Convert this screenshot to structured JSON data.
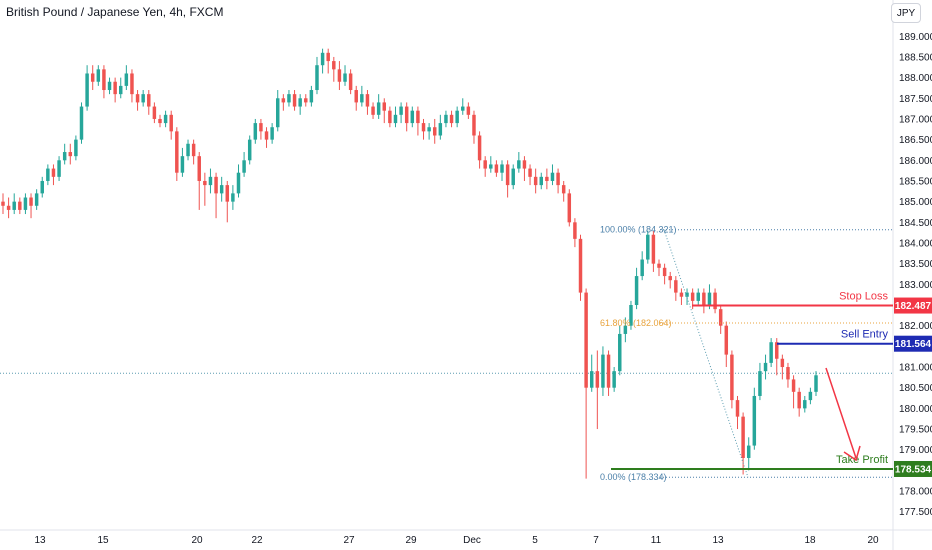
{
  "header": {
    "title": "British Pound / Japanese Yen, 4h, FXCM",
    "currency": "JPY"
  },
  "chart_data": {
    "type": "candlestick",
    "title": "British Pound / Japanese Yen, 4h, FXCM",
    "ylim": [
      177.3,
      189.2
    ],
    "y_ticks": [
      "189.000",
      "188.500",
      "188.000",
      "187.500",
      "187.000",
      "186.500",
      "186.000",
      "185.500",
      "185.000",
      "184.500",
      "184.000",
      "183.500",
      "183.000",
      "182.500",
      "182.000",
      "181.500",
      "181.000",
      "180.500",
      "180.000",
      "179.500",
      "179.000",
      "178.500",
      "178.000",
      "177.500"
    ],
    "x_ticks": [
      "13",
      "15",
      "20",
      "22",
      "27",
      "29",
      "Dec",
      "5",
      "7",
      "11",
      "13",
      "18",
      "20"
    ],
    "levels": {
      "stop_loss": {
        "label": "Stop Loss",
        "value": "182.487",
        "color": "#f23645"
      },
      "sell_entry": {
        "label": "Sell Entry",
        "value": "181.564",
        "color": "#1e2bb3"
      },
      "take_profit": {
        "label": "Take Profit",
        "value": "178.534",
        "color": "#2e7d1e"
      }
    },
    "fibonacci": [
      {
        "label": "100.00% (184.321)",
        "value": 184.321,
        "color": "#4a7fa8"
      },
      {
        "label": "61.80% (182.064)",
        "value": 182.064,
        "color": "#e8a33d"
      },
      {
        "label": "0.00% (178.334)",
        "value": 178.334,
        "color": "#4a7fa8"
      }
    ],
    "current_price_line": 180.85,
    "colors": {
      "up": "#26a69a",
      "down": "#ef5350"
    },
    "candles": [
      [
        185.0,
        184.9,
        185.2,
        184.7
      ],
      [
        184.9,
        184.8,
        185.1,
        184.6
      ],
      [
        184.8,
        185.0,
        185.2,
        184.7
      ],
      [
        185.0,
        184.8,
        185.1,
        184.7
      ],
      [
        184.8,
        185.1,
        185.2,
        184.7
      ],
      [
        185.1,
        184.9,
        185.2,
        184.6
      ],
      [
        184.9,
        185.2,
        185.3,
        184.8
      ],
      [
        185.2,
        185.5,
        185.6,
        185.1
      ],
      [
        185.5,
        185.8,
        185.9,
        185.4
      ],
      [
        185.8,
        185.6,
        185.9,
        185.4
      ],
      [
        185.6,
        186.0,
        186.1,
        185.5
      ],
      [
        186.0,
        186.2,
        186.4,
        185.9
      ],
      [
        186.2,
        186.1,
        186.4,
        185.9
      ],
      [
        186.1,
        186.5,
        186.6,
        186.0
      ],
      [
        186.5,
        187.3,
        187.4,
        186.4
      ],
      [
        187.3,
        188.1,
        188.3,
        187.2
      ],
      [
        188.1,
        187.9,
        188.3,
        187.7
      ],
      [
        187.9,
        188.2,
        188.3,
        187.8
      ],
      [
        188.2,
        187.7,
        188.3,
        187.5
      ],
      [
        187.7,
        187.9,
        188.0,
        187.6
      ],
      [
        187.9,
        187.6,
        188.0,
        187.4
      ],
      [
        187.6,
        187.8,
        188.0,
        187.5
      ],
      [
        187.8,
        188.1,
        188.3,
        187.7
      ],
      [
        188.1,
        187.6,
        188.2,
        187.4
      ],
      [
        187.6,
        187.4,
        187.7,
        187.2
      ],
      [
        187.4,
        187.6,
        187.7,
        187.3
      ],
      [
        187.6,
        187.3,
        187.7,
        187.1
      ],
      [
        187.3,
        187.0,
        187.4,
        186.9
      ],
      [
        187.0,
        186.9,
        187.1,
        186.8
      ],
      [
        186.9,
        187.1,
        187.2,
        186.8
      ],
      [
        187.1,
        186.7,
        187.2,
        186.5
      ],
      [
        186.7,
        185.7,
        186.8,
        185.5
      ],
      [
        185.7,
        186.1,
        186.3,
        185.6
      ],
      [
        186.1,
        186.4,
        186.5,
        186.0
      ],
      [
        186.4,
        186.1,
        186.5,
        185.9
      ],
      [
        186.1,
        185.5,
        186.2,
        184.8
      ],
      [
        185.5,
        185.4,
        185.7,
        184.9
      ],
      [
        185.4,
        185.6,
        185.8,
        185.2
      ],
      [
        185.6,
        185.2,
        185.7,
        184.6
      ],
      [
        185.2,
        185.4,
        185.6,
        185.0
      ],
      [
        185.4,
        185.0,
        185.5,
        184.5
      ],
      [
        185.0,
        185.2,
        185.4,
        184.8
      ],
      [
        185.2,
        185.7,
        185.9,
        185.1
      ],
      [
        185.7,
        186.0,
        186.2,
        185.6
      ],
      [
        186.0,
        186.5,
        186.6,
        185.9
      ],
      [
        186.5,
        186.9,
        187.0,
        186.4
      ],
      [
        186.9,
        186.7,
        187.0,
        186.5
      ],
      [
        186.7,
        186.5,
        186.8,
        186.3
      ],
      [
        186.5,
        186.8,
        186.9,
        186.4
      ],
      [
        186.8,
        187.5,
        187.7,
        186.7
      ],
      [
        187.5,
        187.4,
        187.6,
        187.2
      ],
      [
        187.4,
        187.6,
        187.7,
        187.3
      ],
      [
        187.6,
        187.3,
        187.7,
        187.2
      ],
      [
        187.3,
        187.5,
        187.6,
        187.1
      ],
      [
        187.5,
        187.4,
        187.6,
        187.3
      ],
      [
        187.4,
        187.7,
        187.8,
        187.3
      ],
      [
        187.7,
        188.3,
        188.5,
        187.6
      ],
      [
        188.3,
        188.6,
        188.7,
        188.1
      ],
      [
        188.6,
        188.4,
        188.7,
        188.1
      ],
      [
        188.4,
        188.2,
        188.5,
        187.9
      ],
      [
        188.2,
        187.9,
        188.4,
        187.7
      ],
      [
        187.9,
        188.1,
        188.3,
        187.8
      ],
      [
        188.1,
        187.7,
        188.2,
        187.6
      ],
      [
        187.7,
        187.4,
        187.8,
        187.2
      ],
      [
        187.4,
        187.6,
        187.8,
        187.3
      ],
      [
        187.6,
        187.3,
        187.7,
        187.1
      ],
      [
        187.3,
        187.1,
        187.4,
        187.0
      ],
      [
        187.1,
        187.4,
        187.6,
        187.0
      ],
      [
        187.4,
        187.2,
        187.5,
        186.9
      ],
      [
        187.2,
        186.9,
        187.3,
        186.8
      ],
      [
        186.9,
        187.1,
        187.3,
        186.8
      ],
      [
        187.1,
        187.3,
        187.4,
        186.9
      ],
      [
        187.3,
        186.9,
        187.4,
        186.7
      ],
      [
        186.9,
        187.2,
        187.3,
        186.8
      ],
      [
        187.2,
        186.9,
        187.3,
        186.6
      ],
      [
        186.9,
        186.7,
        187.0,
        186.5
      ],
      [
        186.7,
        186.8,
        186.9,
        186.5
      ],
      [
        186.8,
        186.6,
        187.0,
        186.4
      ],
      [
        186.6,
        186.9,
        187.1,
        186.5
      ],
      [
        186.9,
        187.1,
        187.2,
        186.8
      ],
      [
        187.1,
        186.9,
        187.2,
        186.8
      ],
      [
        186.9,
        187.2,
        187.3,
        186.8
      ],
      [
        187.2,
        187.3,
        187.5,
        187.1
      ],
      [
        187.3,
        187.1,
        187.4,
        187.0
      ],
      [
        187.1,
        186.6,
        187.2,
        186.4
      ],
      [
        186.6,
        186.0,
        186.7,
        185.8
      ],
      [
        186.0,
        185.8,
        186.1,
        185.6
      ],
      [
        185.8,
        185.9,
        186.1,
        185.7
      ],
      [
        185.9,
        185.7,
        186.0,
        185.6
      ],
      [
        185.7,
        185.9,
        186.0,
        185.5
      ],
      [
        185.9,
        185.4,
        186.0,
        185.1
      ],
      [
        185.4,
        185.8,
        185.9,
        185.3
      ],
      [
        185.8,
        186.0,
        186.2,
        185.7
      ],
      [
        186.0,
        185.8,
        186.1,
        185.5
      ],
      [
        185.8,
        185.6,
        185.9,
        185.4
      ],
      [
        185.6,
        185.4,
        185.8,
        185.2
      ],
      [
        185.4,
        185.6,
        185.7,
        185.3
      ],
      [
        185.6,
        185.5,
        185.8,
        185.3
      ],
      [
        185.5,
        185.7,
        185.9,
        185.4
      ],
      [
        185.7,
        185.4,
        185.8,
        185.2
      ],
      [
        185.4,
        185.2,
        185.5,
        185.0
      ],
      [
        185.2,
        184.5,
        185.3,
        184.4
      ],
      [
        184.5,
        184.1,
        184.6,
        183.9
      ],
      [
        184.1,
        182.8,
        184.2,
        182.6
      ],
      [
        182.8,
        180.5,
        182.9,
        178.3
      ],
      [
        180.5,
        180.9,
        181.3,
        180.4
      ],
      [
        180.9,
        180.5,
        181.4,
        179.5
      ],
      [
        180.5,
        181.3,
        181.5,
        180.3
      ],
      [
        181.3,
        180.5,
        181.4,
        180.3
      ],
      [
        180.5,
        180.9,
        181.0,
        180.4
      ],
      [
        180.9,
        181.8,
        182.0,
        180.8
      ],
      [
        181.8,
        182.0,
        182.2,
        181.6
      ],
      [
        182.0,
        182.5,
        182.6,
        181.9
      ],
      [
        182.5,
        183.2,
        183.4,
        182.4
      ],
      [
        183.2,
        183.6,
        183.8,
        183.1
      ],
      [
        183.6,
        184.2,
        184.3,
        183.5
      ],
      [
        184.2,
        183.5,
        184.3,
        183.3
      ],
      [
        183.5,
        183.4,
        183.6,
        183.2
      ],
      [
        183.4,
        183.2,
        183.5,
        183.0
      ],
      [
        183.2,
        183.1,
        183.3,
        182.9
      ],
      [
        183.1,
        182.8,
        183.2,
        182.6
      ],
      [
        182.8,
        182.7,
        182.9,
        182.5
      ],
      [
        182.7,
        182.8,
        182.9,
        182.5
      ],
      [
        182.8,
        182.6,
        182.9,
        182.4
      ],
      [
        182.6,
        182.8,
        182.9,
        182.5
      ],
      [
        182.8,
        182.5,
        182.9,
        182.3
      ],
      [
        182.5,
        182.8,
        183.0,
        182.4
      ],
      [
        182.8,
        182.4,
        182.9,
        182.3
      ],
      [
        182.4,
        182.0,
        182.5,
        181.8
      ],
      [
        182.0,
        181.3,
        182.1,
        181.0
      ],
      [
        181.3,
        180.2,
        181.4,
        180.0
      ],
      [
        180.2,
        179.8,
        180.3,
        179.5
      ],
      [
        179.8,
        178.8,
        179.9,
        178.4
      ],
      [
        178.8,
        179.1,
        179.3,
        178.5
      ],
      [
        179.1,
        180.3,
        180.5,
        179.0
      ],
      [
        180.3,
        180.9,
        181.1,
        180.2
      ],
      [
        180.9,
        181.1,
        181.3,
        180.7
      ],
      [
        181.1,
        181.6,
        181.7,
        181.0
      ],
      [
        181.6,
        181.2,
        181.7,
        180.8
      ],
      [
        181.2,
        181.0,
        181.3,
        180.7
      ],
      [
        181.0,
        180.7,
        181.1,
        180.5
      ],
      [
        180.7,
        180.4,
        180.8,
        180.0
      ],
      [
        180.4,
        180.0,
        180.5,
        179.8
      ],
      [
        180.0,
        180.2,
        180.3,
        179.9
      ],
      [
        180.2,
        180.4,
        180.5,
        180.1
      ],
      [
        180.4,
        180.8,
        180.9,
        180.3
      ]
    ]
  }
}
